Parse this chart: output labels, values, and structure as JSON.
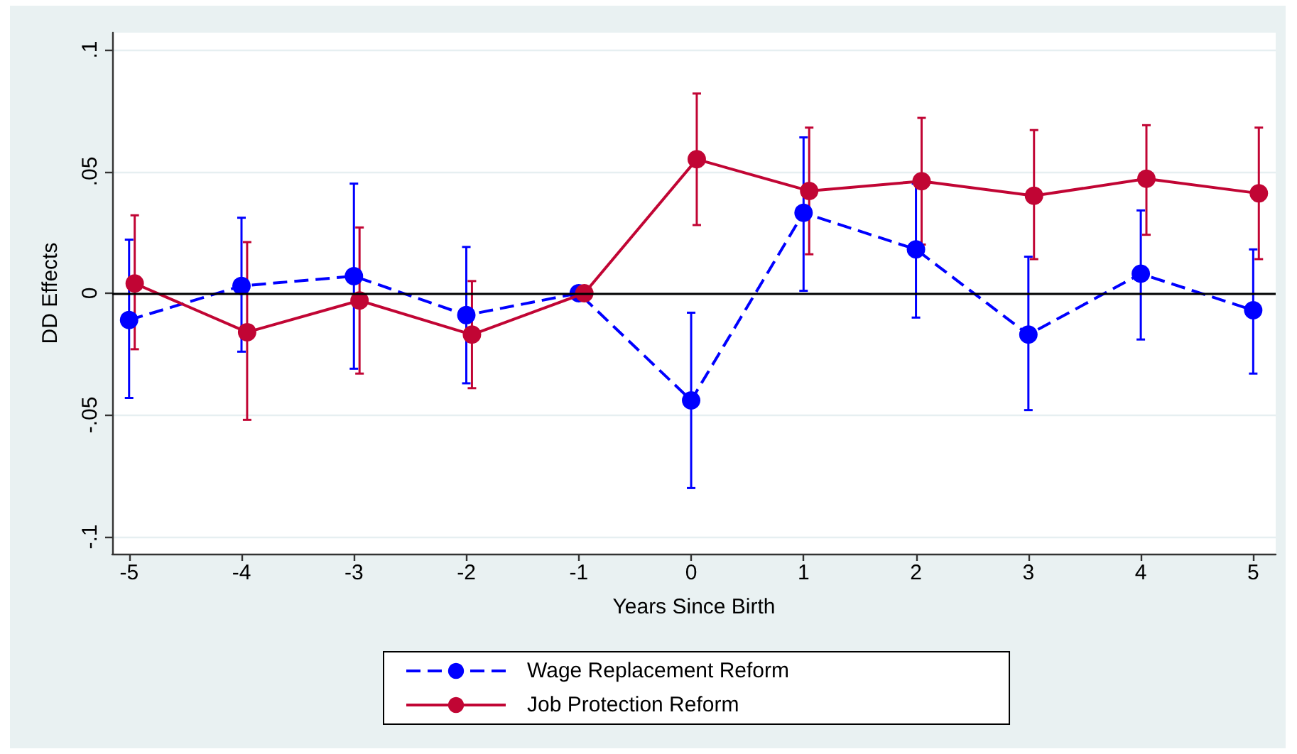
{
  "chart_data": {
    "type": "line",
    "xlabel": "Years Since Birth",
    "ylabel": "DD Effects",
    "xlim": [
      -5.15,
      5.2
    ],
    "xticks": [
      -5,
      -4,
      -3,
      -2,
      -1,
      0,
      1,
      2,
      3,
      4,
      5
    ],
    "ylim": [
      -0.107,
      0.107
    ],
    "yticks": [
      {
        "value": -0.1,
        "label": "-.1"
      },
      {
        "value": -0.05,
        "label": "-.05"
      },
      0,
      {
        "value": 0.05,
        "label": ".05"
      },
      {
        "value": 0.1,
        "label": ".1"
      }
    ],
    "grid": "y",
    "legend": "bottom",
    "marker": "circle",
    "ref_lines": [
      {
        "axis": "y",
        "value": 0,
        "color": "#000000"
      }
    ],
    "series": [
      {
        "name": "Wage Replacement Reform",
        "color": "#0000ff",
        "line_style": "dashed",
        "x": [
          -5,
          -4,
          -3,
          -2,
          -1,
          0,
          1,
          2,
          3,
          4,
          5
        ],
        "values": [
          -0.011,
          0.003,
          0.007,
          -0.009,
          0,
          -0.044,
          0.033,
          0.018,
          -0.017,
          0.008,
          -0.007
        ],
        "errors": [
          [
            -0.043,
            0.022
          ],
          [
            -0.024,
            0.031
          ],
          [
            -0.031,
            0.045
          ],
          [
            -0.037,
            0.019
          ],
          null,
          [
            -0.08,
            -0.008
          ],
          [
            0.001,
            0.064
          ],
          [
            -0.01,
            0.045
          ],
          [
            -0.048,
            0.015
          ],
          [
            -0.019,
            0.034
          ],
          [
            -0.033,
            0.018
          ]
        ]
      },
      {
        "name": "Job Protection Reform",
        "color": "#c10534",
        "line_style": "solid",
        "x": [
          -4.95,
          -3.95,
          -2.95,
          -1.95,
          -0.95,
          0.05,
          1.05,
          2.05,
          3.05,
          4.05,
          5.05
        ],
        "values": [
          0.004,
          -0.016,
          -0.003,
          -0.017,
          0,
          0.055,
          0.042,
          0.046,
          0.04,
          0.047,
          0.041
        ],
        "errors": [
          [
            -0.023,
            0.032
          ],
          [
            -0.052,
            0.021
          ],
          [
            -0.033,
            0.027
          ],
          [
            -0.039,
            0.005
          ],
          null,
          [
            0.028,
            0.082
          ],
          [
            0.016,
            0.068
          ],
          [
            0.02,
            0.072
          ],
          [
            0.014,
            0.067
          ],
          [
            0.024,
            0.069
          ],
          [
            0.014,
            0.068
          ]
        ]
      }
    ]
  }
}
